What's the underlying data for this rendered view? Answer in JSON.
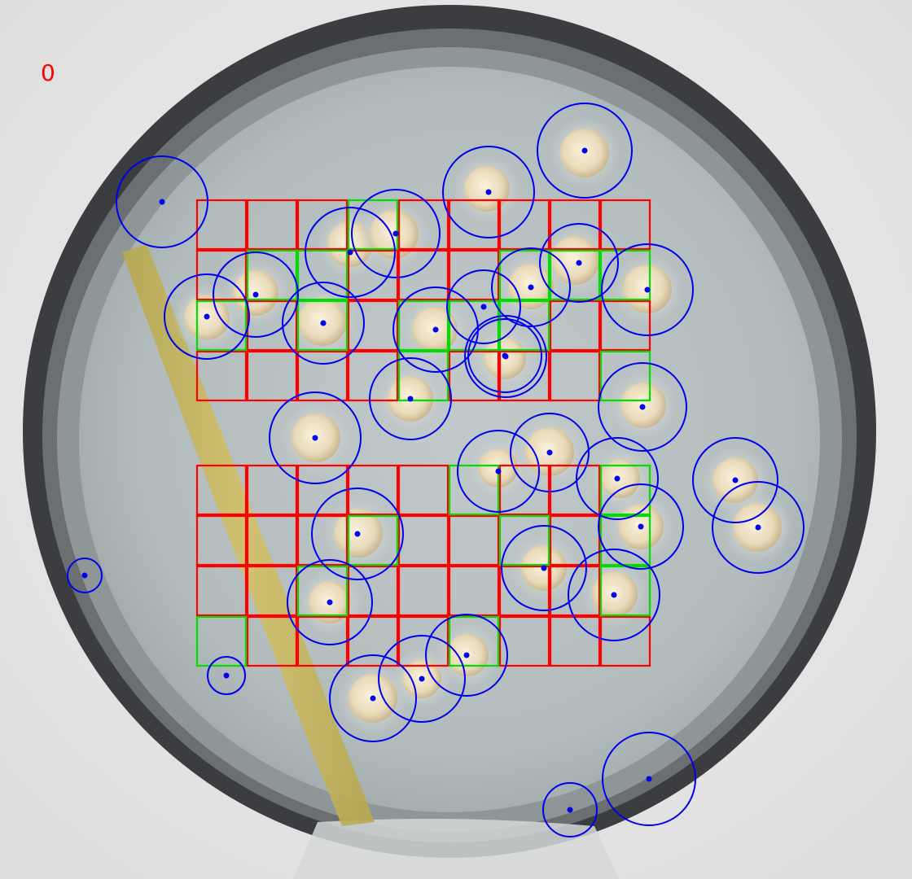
{
  "frame_label": "0",
  "colors": {
    "label": "#ff0000",
    "grid_empty": "#ff0000",
    "grid_colony": "#00dd00",
    "detection_circle": "#0000ee",
    "plate_rim": "#2c2e30",
    "agar": "#b9c1c2",
    "streak": "#c8b457",
    "colony": "#eee2c8"
  },
  "grids": [
    {
      "name": "upper-grid",
      "rows": 4,
      "cols": 9,
      "colony_cells": [
        [
          0,
          3
        ],
        [
          1,
          1
        ],
        [
          1,
          2
        ],
        [
          1,
          6
        ],
        [
          1,
          7
        ],
        [
          1,
          8
        ],
        [
          2,
          0
        ],
        [
          2,
          2
        ],
        [
          2,
          4
        ],
        [
          2,
          5
        ],
        [
          2,
          6
        ],
        [
          3,
          4
        ],
        [
          3,
          8
        ]
      ]
    },
    {
      "name": "lower-grid",
      "rows": 4,
      "cols": 9,
      "colony_cells": [
        [
          0,
          5
        ],
        [
          0,
          8
        ],
        [
          1,
          3
        ],
        [
          1,
          6
        ],
        [
          1,
          8
        ],
        [
          2,
          2
        ],
        [
          2,
          8
        ],
        [
          3,
          0
        ],
        [
          3,
          5
        ]
      ]
    }
  ],
  "detections_count": 35
}
